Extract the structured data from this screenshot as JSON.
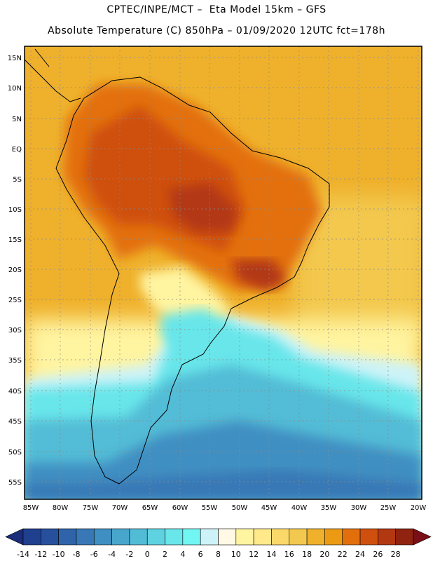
{
  "header": {
    "line1": "CPTEC/INPE/MCT –  Eta Model 15km – GFS",
    "line2": "Absolute Temperature (C) 850hPa – 01/09/2020 12UTC fct=178h"
  },
  "map": {
    "lat_labels": [
      "15N",
      "10N",
      "5N",
      "EQ",
      "5S",
      "10S",
      "15S",
      "20S",
      "25S",
      "30S",
      "35S",
      "40S",
      "45S",
      "50S",
      "55S"
    ],
    "lon_labels": [
      "85W",
      "80W",
      "75W",
      "70W",
      "65W",
      "60W",
      "55W",
      "50W",
      "45W",
      "40W",
      "35W",
      "30W",
      "25W",
      "20W"
    ],
    "land_outline_color": "#000000",
    "gridline_color": "#8a8a8a"
  },
  "colorbar": {
    "ticks": [
      "-14",
      "-12",
      "-10",
      "-8",
      "-6",
      "-4",
      "-2",
      "0",
      "2",
      "4",
      "6",
      "8",
      "10",
      "12",
      "14",
      "16",
      "18",
      "20",
      "22",
      "24",
      "26",
      "28"
    ],
    "colors": [
      "#1f3f8f",
      "#27509c",
      "#2f64aa",
      "#3878b6",
      "#3f8fc2",
      "#48a6cc",
      "#52bcd6",
      "#5ed2e0",
      "#68e6ea",
      "#72f6f4",
      "#cdf3f8",
      "#fff9e6",
      "#fff4a0",
      "#ffe98a",
      "#fbd86a",
      "#f3c84e",
      "#efb12c",
      "#ec9a14",
      "#e36f0c",
      "#cf500e",
      "#b23812",
      "#8f2310"
    ],
    "low_arrow_color": "#1a2d7a",
    "high_arrow_color": "#7a0f18"
  }
}
